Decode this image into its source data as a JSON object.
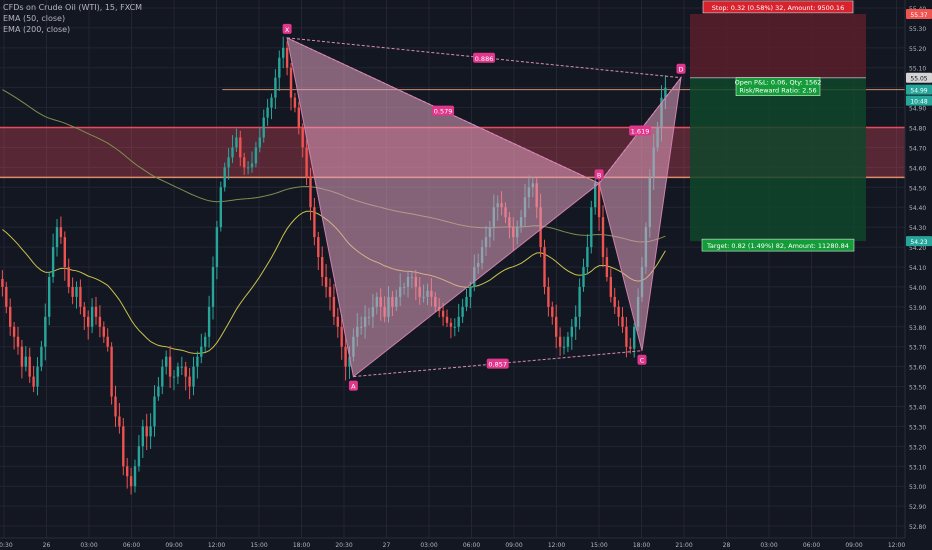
{
  "legend": {
    "symbol": "CFDs on Crude Oil (WTI), 15, FXCM",
    "ema50": "EMA (50, close)",
    "ema200": "EMA (200, close)"
  },
  "colors": {
    "background": "#131722",
    "grid": "#232632",
    "up": "#26a69a",
    "down": "#ef5350",
    "pattern": "#e1a0bf",
    "ema50": "#c9c24d",
    "ema200": "#7e8f4f",
    "zone": "#e84c5c",
    "label_pink": "#e0368c",
    "stop_bg": "#5e1b24",
    "target_bg": "#113f21",
    "axis_text": "#b2b5be"
  },
  "chart_data": {
    "type": "candlestick",
    "y_ticks": [
      "55.40",
      "55.30",
      "55.20",
      "55.10",
      "55.00",
      "54.90",
      "54.80",
      "54.70",
      "54.60",
      "54.50",
      "54.40",
      "54.30",
      "54.20",
      "54.10",
      "54.00",
      "53.90",
      "53.80",
      "53.70",
      "53.60",
      "53.50",
      "53.40",
      "53.30",
      "53.20",
      "53.10",
      "53.00",
      "52.90",
      "52.80"
    ],
    "ylim": [
      52.74,
      55.44
    ],
    "x_ticks": [
      "20:30",
      "26",
      "03:00",
      "06:00",
      "09:00",
      "12:00",
      "15:00",
      "18:00",
      "20:30",
      "27",
      "03:00",
      "06:00",
      "09:00",
      "12:00",
      "15:00",
      "18:00",
      "21:00",
      "28",
      "03:00",
      "06:00",
      "09:00",
      "12:00"
    ],
    "price_badges": [
      {
        "text": "55.37",
        "value": 55.37,
        "color": "#ef5350"
      },
      {
        "text": "55.05",
        "value": 55.05,
        "color": "#d4d4d4"
      },
      {
        "text": "54.99",
        "value": 54.99,
        "color": "#26a69a"
      },
      {
        "text": "10:48",
        "value": 54.935,
        "color": "#26a69a"
      },
      {
        "text": "54.23",
        "value": 54.23,
        "color": "#26a69a"
      }
    ],
    "pattern_points": [
      {
        "label": "X",
        "index": 73,
        "price": 55.25
      },
      {
        "label": "A",
        "index": 90,
        "price": 53.55
      },
      {
        "label": "B",
        "index": 153,
        "price": 54.52
      },
      {
        "label": "C",
        "index": 164,
        "price": 53.68
      },
      {
        "label": "D",
        "index": 174,
        "price": 55.05
      }
    ],
    "ratios": [
      {
        "text": "0.886",
        "from": "X",
        "to": "D"
      },
      {
        "text": "0.579",
        "from": "X",
        "to": "B"
      },
      {
        "text": "1.619",
        "from": "B",
        "to": "D"
      },
      {
        "text": "0.857",
        "from": "A",
        "to": "C"
      }
    ],
    "zone": {
      "top": 54.8,
      "bottom": 54.55
    },
    "resistance": 54.99,
    "position": {
      "stop_label": "Stop: 0.32 (0.58%) 32, Amount: 9500.16",
      "pnl_label": "Open P&L: 0.06, Qty: 1562",
      "rr_label": "Risk/Reward Ratio: 2.56",
      "target_label": "Target: 0.82 (1.49%) 82, Amount: 11280.84",
      "stop": 55.37,
      "entry": 55.05,
      "target": 54.23
    },
    "candles": {
      "start_index": 0,
      "closes": [
        54.0,
        53.9,
        53.8,
        53.75,
        53.7,
        53.6,
        53.65,
        53.55,
        53.5,
        53.6,
        53.7,
        53.85,
        54.05,
        54.2,
        54.3,
        54.25,
        54.1,
        54.0,
        53.95,
        54.0,
        53.9,
        53.85,
        53.8,
        53.9,
        53.85,
        53.8,
        53.75,
        53.7,
        53.45,
        53.35,
        53.3,
        53.1,
        53.05,
        53.0,
        53.1,
        53.2,
        53.3,
        53.25,
        53.3,
        53.45,
        53.5,
        53.6,
        53.65,
        53.55,
        53.55,
        53.6,
        53.6,
        53.55,
        53.5,
        53.6,
        53.65,
        53.7,
        53.75,
        53.9,
        54.1,
        54.3,
        54.5,
        54.6,
        54.65,
        54.7,
        54.75,
        54.65,
        54.6,
        54.6,
        54.62,
        54.7,
        54.75,
        54.85,
        54.9,
        54.95,
        55.05,
        55.15,
        55.2,
        55.1,
        54.95,
        54.9,
        54.8,
        54.7,
        54.55,
        54.4,
        54.25,
        54.15,
        54.05,
        54.0,
        53.95,
        53.85,
        53.8,
        53.7,
        53.6,
        53.65,
        53.75,
        53.8,
        53.8,
        53.85,
        53.85,
        53.9,
        53.95,
        53.9,
        53.85,
        53.95,
        53.9,
        53.95,
        54.0,
        54.0,
        54.05,
        54.05,
        54.0,
        53.95,
        53.95,
        53.98,
        53.95,
        53.9,
        53.88,
        53.85,
        53.82,
        53.8,
        53.8,
        53.85,
        53.9,
        53.95,
        54.0,
        54.1,
        54.12,
        54.2,
        54.25,
        54.3,
        54.4,
        54.42,
        54.4,
        54.35,
        54.3,
        54.25,
        54.3,
        54.35,
        54.45,
        54.5,
        54.52,
        54.4,
        54.2,
        54.0,
        53.9,
        53.85,
        53.75,
        53.7,
        53.7,
        53.75,
        53.8,
        53.85,
        54.0,
        54.1,
        54.2,
        54.4,
        54.52,
        54.35,
        54.15,
        54.05,
        53.95,
        53.9,
        53.85,
        53.8,
        53.7,
        53.69,
        53.8,
        53.95,
        54.1,
        54.3,
        54.55,
        54.7,
        54.8,
        54.95,
        55.0
      ]
    }
  }
}
